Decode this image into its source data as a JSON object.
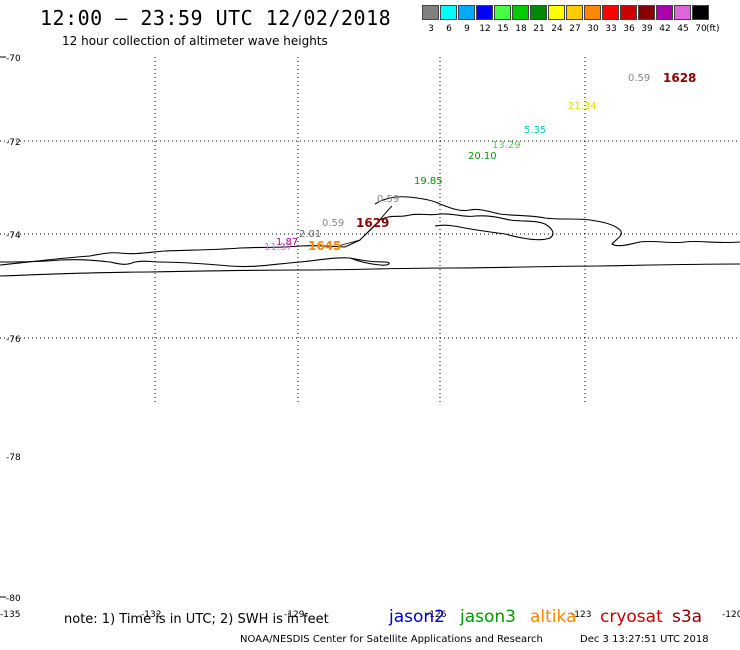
{
  "header": {
    "title": "12:00 – 23:59 UTC 12/02/2018",
    "subtitle": "12 hour collection of altimeter wave heights"
  },
  "legend": {
    "unit": "(ft)",
    "items": [
      {
        "label": "3",
        "color": "#808080"
      },
      {
        "label": "6",
        "color": "#00ffff"
      },
      {
        "label": "9",
        "color": "#00aaff"
      },
      {
        "label": "12",
        "color": "#0000ff"
      },
      {
        "label": "15",
        "color": "#44ff44"
      },
      {
        "label": "18",
        "color": "#00cc00"
      },
      {
        "label": "21",
        "color": "#008800"
      },
      {
        "label": "24",
        "color": "#ffff00"
      },
      {
        "label": "27",
        "color": "#ffcc00"
      },
      {
        "label": "30",
        "color": "#ff8800"
      },
      {
        "label": "33",
        "color": "#ff0000"
      },
      {
        "label": "36",
        "color": "#cc0000"
      },
      {
        "label": "39",
        "color": "#880000"
      },
      {
        "label": "42",
        "color": "#aa00aa"
      },
      {
        "label": "45",
        "color": "#dd66dd"
      },
      {
        "label": "70",
        "color": "#000000"
      }
    ]
  },
  "map": {
    "lat_labels": [
      "-70",
      "-72",
      "-74",
      "-76",
      "-78",
      "-80"
    ],
    "lon_labels": [
      "-135",
      "-132",
      "-129",
      "-126",
      "-123",
      "-120"
    ]
  },
  "observations": [
    {
      "text": "0.59",
      "color": "#888888",
      "bold": false
    },
    {
      "text": "1628",
      "color": "#8b0000",
      "bold": true
    },
    {
      "text": "21.34",
      "color": "#e6d600",
      "bold": false
    },
    {
      "text": "5.35",
      "color": "#00cccc",
      "bold": false
    },
    {
      "text": "13.29",
      "color": "#55cc55",
      "bold": false
    },
    {
      "text": "20.10",
      "color": "#009900",
      "bold": false
    },
    {
      "text": "19.85",
      "color": "#009900",
      "bold": false
    },
    {
      "text": "0.59",
      "color": "#888888",
      "bold": false
    },
    {
      "text": "0.59",
      "color": "#888888",
      "bold": false
    },
    {
      "text": "1629",
      "color": "#8b0000",
      "bold": true
    },
    {
      "text": "2.01",
      "color": "#666666",
      "bold": false
    },
    {
      "text": "1.87",
      "color": "#aa00aa",
      "bold": false
    },
    {
      "text": "11.37",
      "color": "#dd77dd",
      "bold": false
    },
    {
      "text": "1645",
      "color": "#ff8800",
      "bold": true
    }
  ],
  "footer": {
    "note": "note: 1) Time is in UTC; 2) SWH is in feet",
    "satellites": [
      {
        "name": "jason2",
        "color": "#0000cc"
      },
      {
        "name": "jason3",
        "color": "#009900"
      },
      {
        "name": "altika",
        "color": "#ff8800"
      },
      {
        "name": "cryosat",
        "color": "#cc0000"
      },
      {
        "name": "s3a",
        "color": "#880000"
      }
    ],
    "credit": "NOAA/NESDIS Center for Satellite Applications and Research",
    "timestamp": "Dec  3 13:27:51 UTC 2018"
  }
}
